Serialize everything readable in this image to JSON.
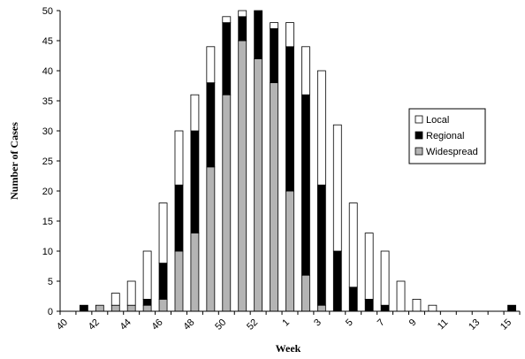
{
  "chart_data": {
    "type": "bar",
    "stacked": true,
    "title": "",
    "xlabel": "Week",
    "ylabel": "Number of Cases",
    "ylim": [
      0,
      50
    ],
    "yticks": [
      0,
      5,
      10,
      15,
      20,
      25,
      30,
      35,
      40,
      45,
      50
    ],
    "categories": [
      "40",
      "41",
      "42",
      "43",
      "44",
      "45",
      "46",
      "47",
      "48",
      "49",
      "50",
      "51",
      "52",
      "53",
      "1",
      "2",
      "3",
      "4",
      "5",
      "6",
      "7",
      "8",
      "9",
      "10",
      "11",
      "12",
      "13",
      "14",
      "15"
    ],
    "xtick_labels": [
      "40",
      "42",
      "44",
      "46",
      "48",
      "50",
      "52",
      "1",
      "3",
      "5",
      "7",
      "9",
      "11",
      "13",
      "15"
    ],
    "legend_position": "right",
    "grid": false,
    "series": [
      {
        "name": "Widespread",
        "color": "#b4b4b4",
        "values": [
          0,
          0,
          1,
          1,
          1,
          1,
          2,
          10,
          13,
          24,
          36,
          45,
          42,
          38,
          20,
          6,
          1,
          0,
          0,
          0,
          0,
          0,
          0,
          0,
          0,
          0,
          0,
          0,
          0
        ]
      },
      {
        "name": "Regional",
        "color": "#000000",
        "values": [
          0,
          1,
          0,
          0,
          0,
          1,
          6,
          11,
          17,
          14,
          12,
          4,
          8,
          9,
          24,
          30,
          20,
          10,
          4,
          2,
          1,
          0,
          0,
          0,
          0,
          0,
          0,
          0,
          1
        ]
      },
      {
        "name": "Local",
        "color": "#ffffff",
        "values": [
          0,
          0,
          0,
          2,
          4,
          8,
          10,
          9,
          6,
          6,
          1,
          1,
          0,
          1,
          4,
          8,
          19,
          21,
          14,
          11,
          9,
          5,
          2,
          1,
          0,
          0,
          0,
          0,
          0
        ]
      }
    ],
    "legend_order": [
      "Local",
      "Regional",
      "Widespread"
    ]
  }
}
